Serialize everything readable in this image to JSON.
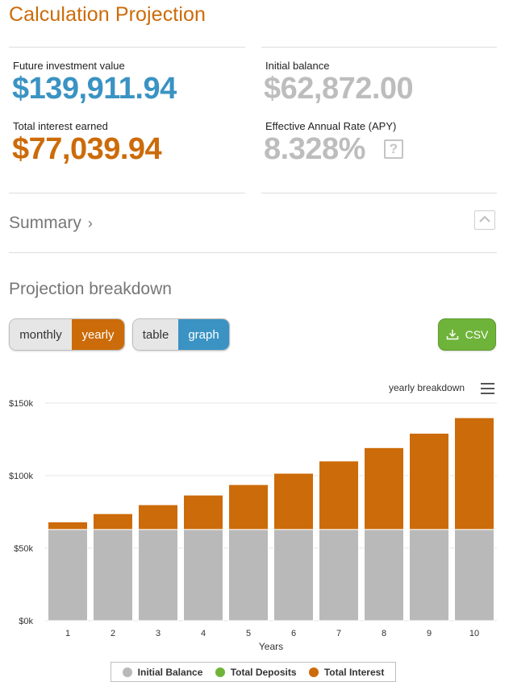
{
  "page": {
    "title": "Calculation Projection"
  },
  "stats": {
    "future_value": {
      "label": "Future investment value",
      "value": "$139,911.94"
    },
    "initial_balance": {
      "label": "Initial balance",
      "value": "$62,872.00"
    },
    "total_interest": {
      "label": "Total interest earned",
      "value": "$77,039.94"
    },
    "apy": {
      "label": "Effective Annual Rate (APY)",
      "value": "8.328%",
      "help": "?"
    }
  },
  "summary": {
    "label": "Summary",
    "chevron": "›"
  },
  "breakdown": {
    "title": "Projection breakdown",
    "period_toggle": {
      "options": [
        "monthly",
        "yearly"
      ],
      "selected": "yearly"
    },
    "view_toggle": {
      "options": [
        "table",
        "graph"
      ],
      "selected": "graph"
    },
    "csv_label": "CSV"
  },
  "chart_data": {
    "type": "bar",
    "stacked": true,
    "subtitle": "yearly breakdown",
    "xlabel": "Years",
    "categories": [
      "1",
      "2",
      "3",
      "4",
      "5",
      "6",
      "7",
      "8",
      "9",
      "10"
    ],
    "ylim": [
      0,
      150000
    ],
    "yticks": [
      "$0k",
      "$50k",
      "$100k",
      "$150k"
    ],
    "grid": true,
    "legend_position": "bottom",
    "series": [
      {
        "name": "Initial Balance",
        "color": "#b9b9b9",
        "values": [
          62872,
          62872,
          62872,
          62872,
          62872,
          62872,
          62872,
          62872,
          62872,
          62872
        ]
      },
      {
        "name": "Total Deposits",
        "color": "#6fb43a",
        "values": [
          0,
          0,
          0,
          0,
          0,
          0,
          0,
          0,
          0,
          0
        ]
      },
      {
        "name": "Total Interest",
        "color": "#cc6b09",
        "values": [
          5236,
          10911,
          17061,
          23721,
          30938,
          38756,
          47223,
          56392,
          66318,
          77040
        ]
      }
    ]
  },
  "colors": {
    "accent_orange": "#cc6b09",
    "accent_blue": "#3a93c3",
    "csv_green": "#6fb43a",
    "muted_grey": "#bdbdbd"
  }
}
